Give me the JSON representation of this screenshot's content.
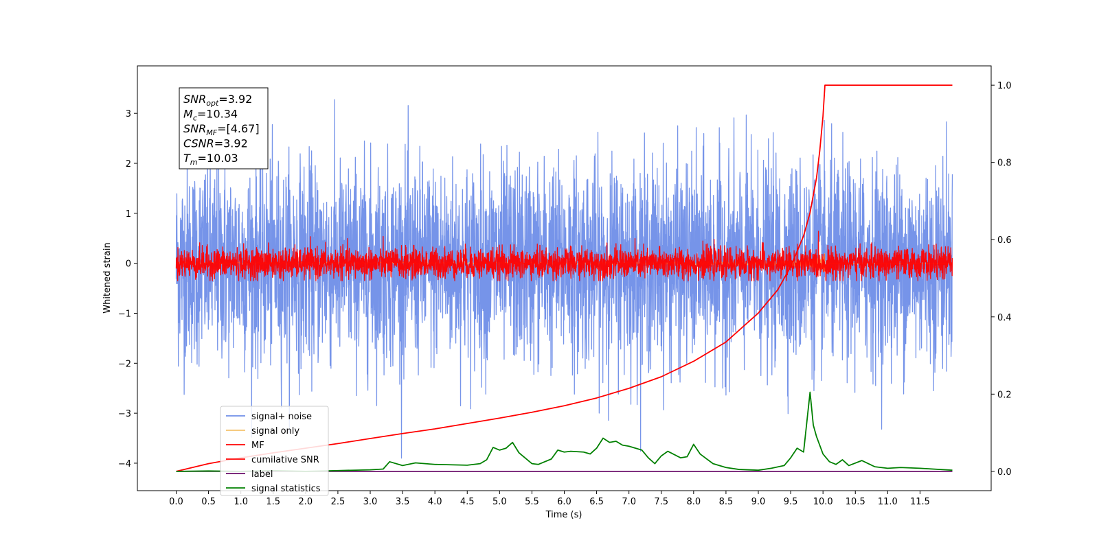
{
  "chart_data": {
    "type": "line",
    "xlabel": "Time (s)",
    "ylabel": "Whitened strain",
    "xlim": [
      -0.6,
      12.6
    ],
    "ylim": [
      -4.55,
      3.95
    ],
    "y2lim": [
      -0.05,
      1.05
    ],
    "xticks": [
      0.0,
      0.5,
      1.0,
      1.5,
      2.0,
      2.5,
      3.0,
      3.5,
      4.0,
      4.5,
      5.0,
      5.5,
      6.0,
      6.5,
      7.0,
      7.5,
      8.0,
      8.5,
      9.0,
      9.5,
      10.0,
      10.5,
      11.0,
      11.5
    ],
    "xtick_labels": [
      "0.0",
      "0.5",
      "1.0",
      "1.5",
      "2.0",
      "2.5",
      "3.0",
      "3.5",
      "4.0",
      "4.5",
      "5.0",
      "5.5",
      "6.0",
      "6.5",
      "7.0",
      "7.5",
      "8.0",
      "8.5",
      "9.0",
      "9.5",
      "10.0",
      "10.5",
      "11.0",
      "11.5"
    ],
    "yticks": [
      -4,
      -3,
      -2,
      -1,
      0,
      1,
      2,
      3
    ],
    "ytick_labels": [
      "−4",
      "−3",
      "−2",
      "−1",
      "0",
      "1",
      "2",
      "3"
    ],
    "y2ticks": [
      0.0,
      0.2,
      0.4,
      0.6,
      0.8,
      1.0
    ],
    "y2tick_labels": [
      "0.0",
      "0.2",
      "0.4",
      "0.6",
      "0.8",
      "1.0"
    ],
    "grid": false,
    "legend_position": "lower-left",
    "annotation": [
      {
        "base": "SNR",
        "sub": "opt",
        "rest": "=3.92"
      },
      {
        "base": "M",
        "sub": "c",
        "rest": "=10.34"
      },
      {
        "base": "SNR",
        "sub": "MF",
        "rest": "=[4.67]"
      },
      {
        "base": "CSNR",
        "sub": "",
        "rest": "=3.92"
      },
      {
        "base": "T",
        "sub": "m",
        "rest": "=10.03"
      }
    ],
    "series": [
      {
        "name": "signal+ noise",
        "color": "#6f8ee8",
        "axis": "left",
        "kind": "noise",
        "x_range": [
          0.0,
          12.0
        ],
        "amplitude_std": 1.0,
        "approx_range": [
          -3.9,
          3.6
        ]
      },
      {
        "name": "signal only",
        "color": "#f5c26b",
        "axis": "left",
        "kind": "chirp",
        "x_range": [
          0.0,
          12.0
        ],
        "peak_time": 10.03,
        "peak_amplitude": 0.6
      },
      {
        "name": "MF",
        "color": "#ff0000",
        "axis": "left",
        "kind": "noise",
        "x_range": [
          0.0,
          12.0
        ],
        "amplitude_std": 0.15,
        "approx_range": [
          -0.35,
          1.0
        ]
      },
      {
        "name": "cumilative SNR",
        "color": "#ff0000",
        "axis": "right",
        "x": [
          0.0,
          0.5,
          1.0,
          1.5,
          2.0,
          2.5,
          3.0,
          3.5,
          4.0,
          4.5,
          5.0,
          5.5,
          6.0,
          6.5,
          7.0,
          7.5,
          8.0,
          8.5,
          9.0,
          9.3,
          9.5,
          9.7,
          9.8,
          9.9,
          9.95,
          10.0,
          10.03,
          10.5,
          11.0,
          11.5,
          12.0
        ],
        "y": [
          0.0,
          0.02,
          0.035,
          0.048,
          0.06,
          0.072,
          0.085,
          0.098,
          0.11,
          0.124,
          0.138,
          0.153,
          0.17,
          0.19,
          0.215,
          0.245,
          0.285,
          0.335,
          0.41,
          0.47,
          0.53,
          0.61,
          0.67,
          0.76,
          0.83,
          0.92,
          1.0,
          1.0,
          1.0,
          1.0,
          1.0
        ]
      },
      {
        "name": "label",
        "color": "#6a0d6a",
        "axis": "right",
        "x": [
          0.0,
          12.0
        ],
        "y": [
          0.0,
          0.0
        ]
      },
      {
        "name": "signal statistics",
        "color": "#008000",
        "axis": "right",
        "x": [
          0.0,
          0.5,
          1.0,
          1.5,
          2.0,
          2.5,
          3.0,
          3.2,
          3.3,
          3.5,
          3.7,
          4.0,
          4.5,
          4.7,
          4.8,
          4.9,
          5.0,
          5.1,
          5.2,
          5.3,
          5.5,
          5.6,
          5.8,
          5.9,
          6.0,
          6.1,
          6.3,
          6.4,
          6.5,
          6.6,
          6.7,
          6.8,
          6.9,
          7.0,
          7.2,
          7.3,
          7.4,
          7.5,
          7.6,
          7.8,
          7.9,
          8.0,
          8.1,
          8.3,
          8.5,
          8.7,
          9.0,
          9.2,
          9.4,
          9.5,
          9.6,
          9.7,
          9.8,
          9.85,
          9.9,
          10.0,
          10.1,
          10.2,
          10.3,
          10.4,
          10.6,
          10.8,
          11.0,
          11.2,
          11.5,
          12.0
        ],
        "y": [
          0.0,
          0.001,
          0.0,
          0.002,
          0.0,
          0.002,
          0.004,
          0.006,
          0.025,
          0.015,
          0.022,
          0.018,
          0.016,
          0.02,
          0.03,
          0.062,
          0.055,
          0.06,
          0.075,
          0.048,
          0.02,
          0.018,
          0.032,
          0.055,
          0.05,
          0.052,
          0.05,
          0.045,
          0.06,
          0.086,
          0.075,
          0.078,
          0.068,
          0.065,
          0.055,
          0.035,
          0.02,
          0.04,
          0.052,
          0.035,
          0.038,
          0.07,
          0.045,
          0.02,
          0.01,
          0.005,
          0.003,
          0.008,
          0.015,
          0.035,
          0.06,
          0.05,
          0.205,
          0.12,
          0.09,
          0.045,
          0.025,
          0.018,
          0.03,
          0.015,
          0.028,
          0.012,
          0.008,
          0.01,
          0.008,
          0.003
        ]
      }
    ]
  }
}
